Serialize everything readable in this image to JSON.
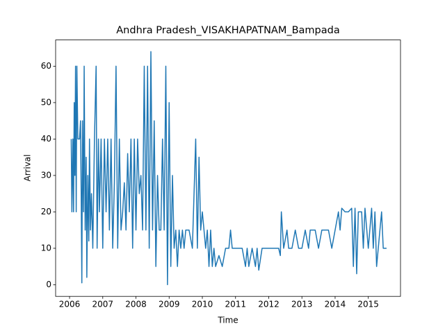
{
  "chart_data": {
    "type": "line",
    "title": "Andhra Pradesh_VISAKHAPATNAM_Bampada",
    "x_label": "Time",
    "y_label": "Arrival",
    "xlim": [
      2005.58,
      2015.97
    ],
    "ylim": [
      -3.2,
      67.2
    ],
    "xticks": [
      2006,
      2007,
      2008,
      2009,
      2010,
      2011,
      2012,
      2013,
      2014,
      2015
    ],
    "yticks": [
      0,
      10,
      20,
      30,
      40,
      50,
      60
    ],
    "grid": false,
    "x": [
      2006.05,
      2006.07,
      2006.1,
      2006.12,
      2006.14,
      2006.16,
      2006.18,
      2006.2,
      2006.22,
      2006.25,
      2006.3,
      2006.33,
      2006.35,
      2006.37,
      2006.39,
      2006.42,
      2006.44,
      2006.47,
      2006.5,
      2006.52,
      2006.55,
      2006.58,
      2006.6,
      2006.63,
      2006.66,
      2006.7,
      2006.75,
      2006.8,
      2006.83,
      2006.87,
      2006.9,
      2006.95,
      2007.0,
      2007.05,
      2007.1,
      2007.15,
      2007.2,
      2007.25,
      2007.3,
      2007.35,
      2007.4,
      2007.45,
      2007.5,
      2007.55,
      2007.6,
      2007.65,
      2007.7,
      2007.75,
      2007.8,
      2007.85,
      2007.9,
      2007.95,
      2008.0,
      2008.05,
      2008.1,
      2008.15,
      2008.2,
      2008.25,
      2008.3,
      2008.35,
      2008.4,
      2008.45,
      2008.5,
      2008.55,
      2008.6,
      2008.65,
      2008.7,
      2008.75,
      2008.8,
      2008.85,
      2008.9,
      2008.95,
      2009.0,
      2009.05,
      2009.1,
      2009.15,
      2009.2,
      2009.25,
      2009.3,
      2009.35,
      2009.4,
      2009.45,
      2009.5,
      2009.6,
      2009.7,
      2009.8,
      2009.85,
      2009.9,
      2009.95,
      2010.0,
      2010.05,
      2010.1,
      2010.15,
      2010.2,
      2010.25,
      2010.3,
      2010.35,
      2010.4,
      2010.5,
      2010.6,
      2010.7,
      2010.8,
      2010.85,
      2010.9,
      2011.0,
      2011.2,
      2011.3,
      2011.35,
      2011.4,
      2011.5,
      2011.6,
      2011.65,
      2011.7,
      2011.8,
      2012.0,
      2012.3,
      2012.35,
      2012.38,
      2012.45,
      2012.55,
      2012.6,
      2012.7,
      2012.8,
      2012.9,
      2013.0,
      2013.1,
      2013.2,
      2013.25,
      2013.4,
      2013.5,
      2013.6,
      2013.8,
      2013.9,
      2014.0,
      2014.1,
      2014.15,
      2014.2,
      2014.3,
      2014.4,
      2014.5,
      2014.55,
      2014.6,
      2014.65,
      2014.7,
      2014.8,
      2014.85,
      2014.9,
      2015.0,
      2015.1,
      2015.15,
      2015.2,
      2015.25,
      2015.3,
      2015.4,
      2015.45,
      2015.55
    ],
    "series": [
      {
        "color": "#1f77b4",
        "values": [
          40,
          20,
          40,
          20,
          50,
          30,
          60,
          20,
          60,
          40,
          40,
          45,
          25,
          0.5,
          45,
          20,
          60,
          15,
          35,
          2,
          30,
          12,
          40,
          15,
          25,
          10,
          40,
          60,
          10,
          40,
          20,
          40,
          10,
          40,
          20,
          40,
          15,
          40,
          10,
          28,
          60,
          10,
          40,
          15,
          20,
          28,
          15,
          36,
          20,
          40,
          10,
          40,
          15,
          40,
          25,
          30,
          15,
          60,
          15,
          60,
          10,
          64,
          15,
          45,
          5,
          30,
          15,
          15,
          40,
          15,
          60,
          0,
          50,
          5,
          30,
          10,
          15,
          5,
          15,
          10,
          15,
          10,
          15,
          15,
          10,
          40,
          10,
          35,
          15,
          20,
          15,
          10,
          15,
          5,
          15,
          5,
          10,
          5,
          8,
          5,
          10,
          10,
          15,
          10,
          10,
          10,
          5,
          10,
          5,
          10,
          5,
          10,
          4,
          10,
          10,
          10,
          8,
          20,
          10,
          15,
          10,
          10,
          15,
          10,
          10,
          15,
          10,
          15,
          15,
          10,
          15,
          15,
          10,
          15,
          20,
          15,
          21,
          20,
          20,
          21,
          5,
          21,
          3,
          20,
          20,
          10,
          21,
          10,
          21,
          10,
          20,
          5,
          10,
          20,
          10,
          10
        ]
      }
    ]
  }
}
